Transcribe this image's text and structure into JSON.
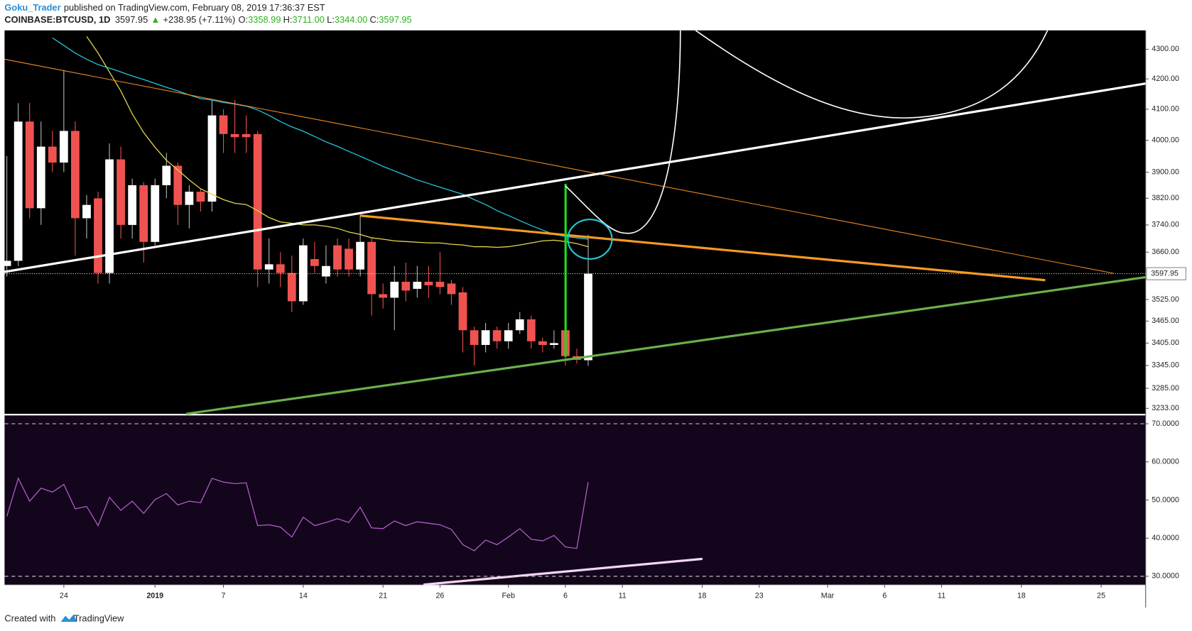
{
  "header": {
    "user": "Goku_Trader",
    "published": "published on TradingView.com, February 08, 2019 17:36:37 EST",
    "symbol": "COINBASE:BTCUSD, 1D",
    "last": "3597.95",
    "arrow": "▲",
    "change": "+238.95 (+7.11%)",
    "o_label": "O:",
    "o": "3358.99",
    "h_label": "H:",
    "h": "3711.00",
    "l_label": "L:",
    "l": "3344.00",
    "c_label": "C:",
    "c": "3597.95"
  },
  "footer": {
    "created": "Created with",
    "brand": "TradingView"
  },
  "chart_data": [
    {
      "type": "candlestick",
      "log_scale": true,
      "grid": false,
      "up_color": "#ffffff",
      "down_color": "#ef5350",
      "xlim": [
        -0.2,
        99.9
      ],
      "ylim": [
        3219,
        4365
      ],
      "yticks": [
        {
          "value": 4300,
          "label": "4300.00"
        },
        {
          "value": 4200,
          "label": "4200.00"
        },
        {
          "value": 4100,
          "label": "4100.00"
        },
        {
          "value": 4000,
          "label": "4000.00"
        },
        {
          "value": 3900,
          "label": "3900.00"
        },
        {
          "value": 3820,
          "label": "3820.00"
        },
        {
          "value": 3740,
          "label": "3740.00"
        },
        {
          "value": 3660,
          "label": "3660.00"
        },
        {
          "value": 3525,
          "label": "3525.00"
        },
        {
          "value": 3465,
          "label": "3465.00"
        },
        {
          "value": 3405,
          "label": "3405.00"
        },
        {
          "value": 3345,
          "label": "3345.00"
        },
        {
          "value": 3285,
          "label": "3285.00"
        },
        {
          "value": 3233,
          "label": "3233.00"
        }
      ],
      "last_price": {
        "value": 3597.95,
        "label": "3597.95"
      },
      "open": [
        3620,
        3635,
        4060,
        3790,
        3980,
        3930,
        4030,
        3760,
        3820,
        3600,
        3940,
        3740,
        3860,
        3690,
        3860,
        3920,
        3800,
        3840,
        3810,
        4080,
        4020,
        4020,
        4020,
        3610,
        3625,
        3600,
        3520,
        3640,
        3590,
        3680,
        3670,
        3610,
        3690,
        3540,
        3530,
        3575,
        3555,
        3575,
        3575,
        3570,
        3545,
        3440,
        3400,
        3440,
        3410,
        3440,
        3470,
        3410,
        3400,
        3440,
        3370,
        3358.99
      ],
      "high": [
        3950,
        4120,
        4120,
        4060,
        4030,
        4230,
        4060,
        3830,
        3840,
        3990,
        3980,
        3880,
        3870,
        3880,
        3960,
        3930,
        3860,
        3850,
        4130,
        4100,
        4130,
        4080,
        4030,
        3700,
        3660,
        3650,
        3700,
        3690,
        3680,
        3700,
        3700,
        3770,
        3700,
        3570,
        3620,
        3630,
        3620,
        3620,
        3660,
        3580,
        3560,
        3450,
        3460,
        3450,
        3460,
        3490,
        3480,
        3420,
        3440,
        3440,
        3390,
        3711
      ],
      "low": [
        3590,
        3620,
        3760,
        3740,
        3900,
        3900,
        3650,
        3700,
        3570,
        3570,
        3700,
        3700,
        3630,
        3680,
        3820,
        3740,
        3730,
        3780,
        3780,
        3960,
        3960,
        3960,
        3560,
        3570,
        3560,
        3490,
        3510,
        3600,
        3570,
        3590,
        3590,
        3590,
        3480,
        3500,
        3440,
        3520,
        3530,
        3530,
        3540,
        3510,
        3380,
        3345,
        3380,
        3390,
        3390,
        3430,
        3390,
        3380,
        3390,
        3345,
        3350,
        3344
      ],
      "close": [
        3635,
        4060,
        3790,
        3980,
        3930,
        4030,
        3760,
        3800,
        3600,
        3940,
        3740,
        3860,
        3690,
        3860,
        3920,
        3800,
        3840,
        3810,
        4080,
        4020,
        4010,
        4010,
        3610,
        3625,
        3600,
        3520,
        3680,
        3620,
        3620,
        3610,
        3610,
        3690,
        3540,
        3530,
        3575,
        3550,
        3575,
        3565,
        3560,
        3540,
        3440,
        3400,
        3440,
        3410,
        3440,
        3470,
        3410,
        3400,
        3405,
        3370,
        3360,
        3597.95
      ],
      "overlays": [
        {
          "color": "#26c6da",
          "values": [
            null,
            null,
            null,
            null,
            4339,
            4313,
            4287,
            4266,
            4248,
            4236,
            4223,
            4210,
            4198,
            4185,
            4172,
            4160,
            4147,
            4135,
            4130,
            4122,
            4117,
            4110,
            4098,
            4080,
            4060,
            4043,
            4029,
            4012,
            3995,
            3981,
            3965,
            3950,
            3934,
            3918,
            3904,
            3890,
            3876,
            3865,
            3854,
            3843,
            3832,
            3816,
            3801,
            3783,
            3768,
            3753,
            3738,
            3725,
            3712,
            3706,
            3702,
            3698
          ]
        },
        {
          "color": "#e6d84a",
          "values": [
            null,
            null,
            null,
            null,
            null,
            null,
            null,
            4344,
            4287,
            4223,
            4160,
            4085,
            4025,
            3978,
            3937,
            3907,
            3876,
            3849,
            3832,
            3816,
            3805,
            3801,
            3783,
            3762,
            3749,
            3745,
            3740,
            3740,
            3736,
            3730,
            3719,
            3712,
            3702,
            3698,
            3693,
            3691,
            3689,
            3687,
            3687,
            3683,
            3681,
            3676,
            3676,
            3674,
            3676,
            3681,
            3687,
            3693,
            3695,
            3691,
            3685,
            3676
          ]
        }
      ]
    },
    {
      "type": "line",
      "color": "#b05cc8",
      "xlim": [
        -0.2,
        99.9
      ],
      "ylim": [
        27.8,
        72.2
      ],
      "yticks": [
        {
          "value": 70,
          "label": "70.0000"
        },
        {
          "value": 60,
          "label": "60.0000"
        },
        {
          "value": 50,
          "label": "50.0000"
        },
        {
          "value": 40,
          "label": "40.0000"
        },
        {
          "value": 30,
          "label": "30.0000"
        }
      ],
      "band_lines": [
        70,
        30
      ],
      "values": [
        45.7,
        55.7,
        49.7,
        53.1,
        52.1,
        54.1,
        47.7,
        48.3,
        43.3,
        50.7,
        47.3,
        49.7,
        46.5,
        50.1,
        51.7,
        48.7,
        49.7,
        49.3,
        55.7,
        54.7,
        54.3,
        54.5,
        43.3,
        43.5,
        42.9,
        40.3,
        45.5,
        43.3,
        44.1,
        45.1,
        44.1,
        48.1,
        42.7,
        42.5,
        44.5,
        43.3,
        44.3,
        43.9,
        43.5,
        42.3,
        38.3,
        36.7,
        39.5,
        38.3,
        40.3,
        42.5,
        39.7,
        39.3,
        40.7,
        37.7,
        37.3,
        54.7
      ],
      "xticks": [
        {
          "value": 5,
          "label": "24"
        },
        {
          "value": 13,
          "label": "2019",
          "bold": true
        },
        {
          "value": 19,
          "label": "7"
        },
        {
          "value": 26,
          "label": "14"
        },
        {
          "value": 33,
          "label": "21"
        },
        {
          "value": 38,
          "label": "26"
        },
        {
          "value": 44,
          "label": "Feb"
        },
        {
          "value": 49,
          "label": "6"
        },
        {
          "value": 54,
          "label": "11"
        },
        {
          "value": 61,
          "label": "18"
        },
        {
          "value": 66,
          "label": "23"
        },
        {
          "value": 72,
          "label": "Mar"
        },
        {
          "value": 77,
          "label": "6"
        },
        {
          "value": 82,
          "label": "11"
        },
        {
          "value": 89,
          "label": "18"
        },
        {
          "value": 96,
          "label": "25"
        }
      ]
    }
  ]
}
